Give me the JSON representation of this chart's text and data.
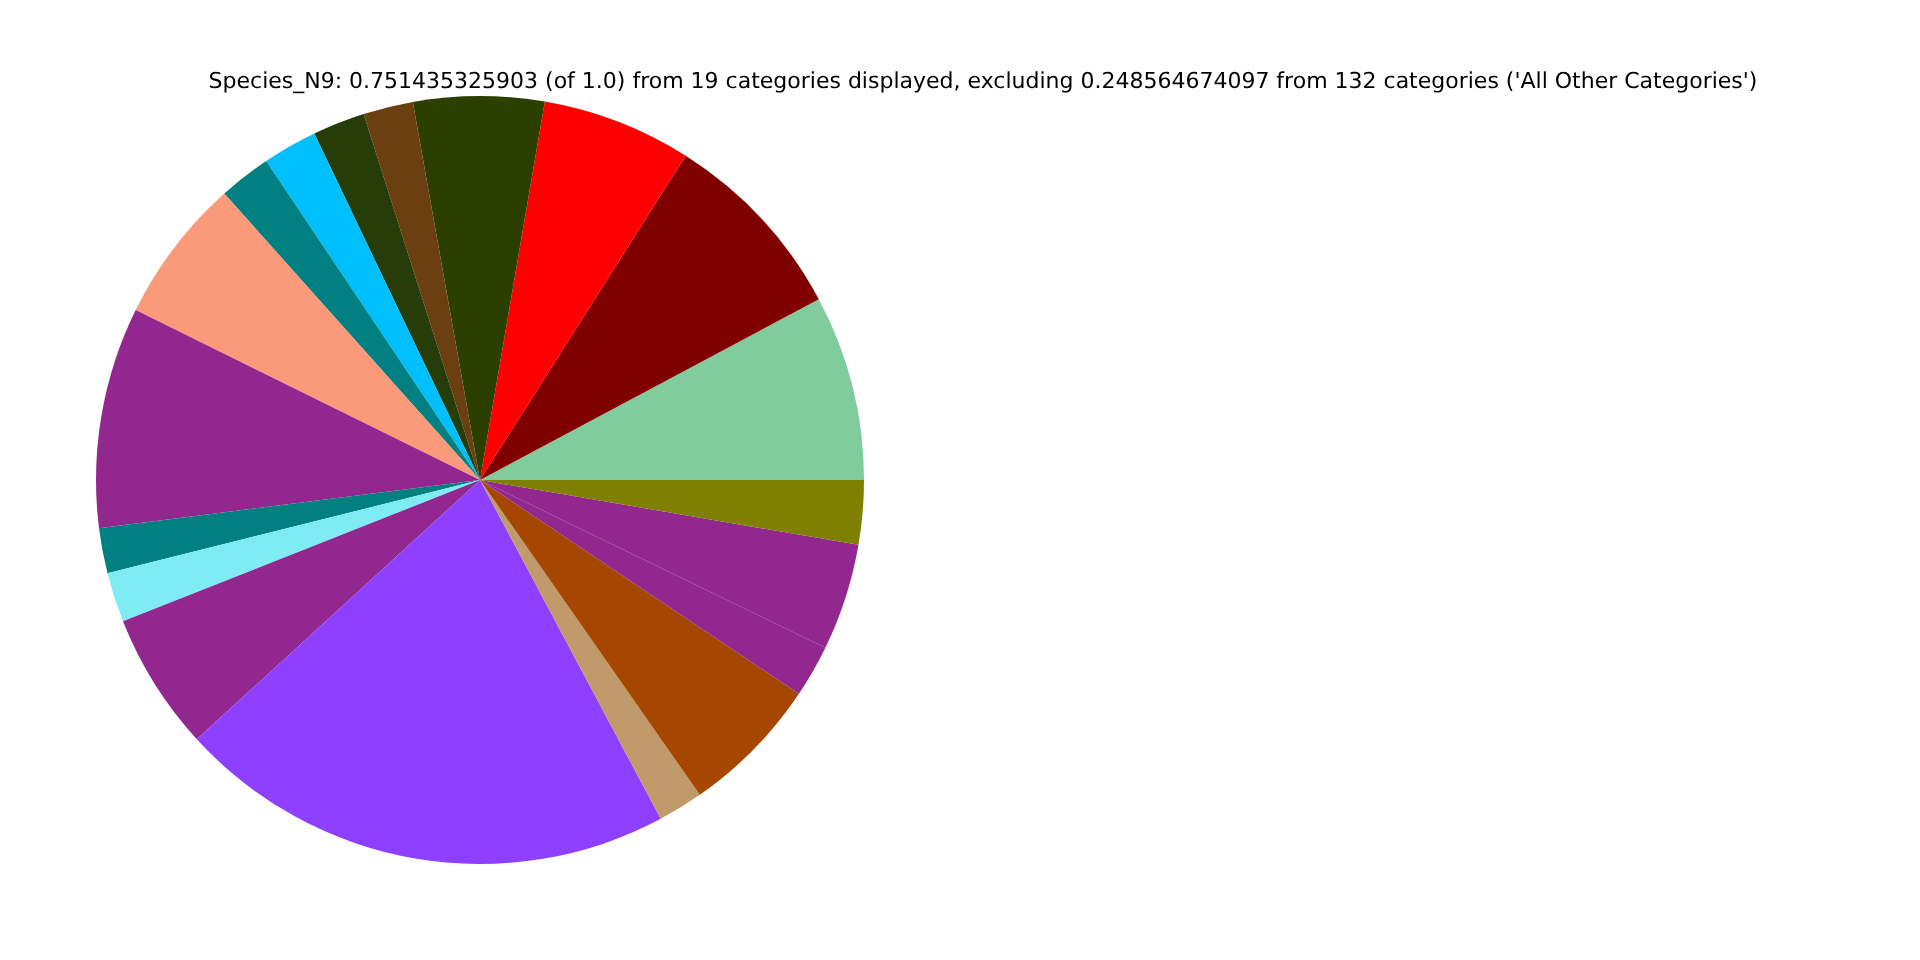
{
  "chart_data": {
    "type": "pie",
    "title": "Species_N9: 0.751435325903 (of 1.0) from 19 categories displayed, excluding 0.248564674097 from 132 categories ('All Other Categories')",
    "categories": [
      null,
      null,
      null,
      null,
      null,
      null,
      null,
      null,
      null,
      null,
      null,
      null,
      null,
      null,
      null,
      null,
      null,
      null,
      null
    ],
    "values": [
      7.8,
      8.2,
      6.3,
      5.5,
      2.1,
      2.2,
      2.3,
      2.2,
      6.1,
      9.3,
      1.9,
      2.1,
      5.8,
      21.0,
      1.9,
      5.9,
      2.2,
      4.5,
      2.7
    ],
    "colors": [
      "#80cc9c",
      "#800000",
      "#ff0000",
      "#2b4000",
      "#6b3f0f",
      "#263d0a",
      "#00bfff",
      "#008080",
      "#fa9a7a",
      "#92278f",
      "#008080",
      "#7eecf2",
      "#92278f",
      "#8e3fff",
      "#c19a6b",
      "#a54700",
      "#92278f",
      "#92278f",
      "#7f7f00"
    ],
    "legend": false
  }
}
